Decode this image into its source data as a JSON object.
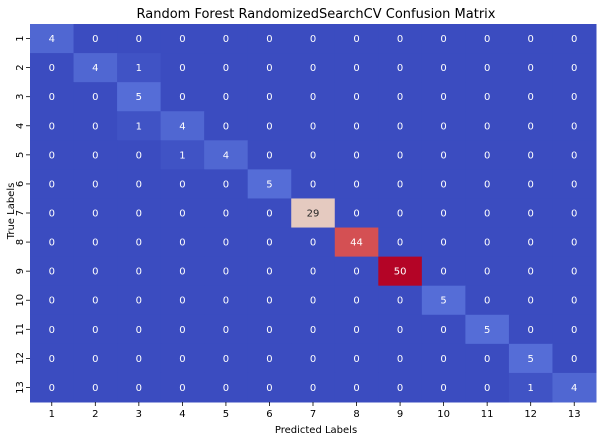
{
  "chart_data": {
    "type": "heatmap",
    "title": "Random Forest RandomizedSearchCV Confusion Matrix",
    "xlabel": "Predicted Labels",
    "ylabel": "True Labels",
    "x_categories": [
      "1",
      "2",
      "3",
      "4",
      "5",
      "6",
      "7",
      "8",
      "9",
      "10",
      "11",
      "12",
      "13"
    ],
    "y_categories": [
      "1",
      "2",
      "3",
      "4",
      "5",
      "6",
      "7",
      "8",
      "9",
      "10",
      "11",
      "12",
      "13"
    ],
    "values": [
      [
        4,
        0,
        0,
        0,
        0,
        0,
        0,
        0,
        0,
        0,
        0,
        0,
        0
      ],
      [
        0,
        4,
        1,
        0,
        0,
        0,
        0,
        0,
        0,
        0,
        0,
        0,
        0
      ],
      [
        0,
        0,
        5,
        0,
        0,
        0,
        0,
        0,
        0,
        0,
        0,
        0,
        0
      ],
      [
        0,
        0,
        1,
        4,
        0,
        0,
        0,
        0,
        0,
        0,
        0,
        0,
        0
      ],
      [
        0,
        0,
        0,
        1,
        4,
        0,
        0,
        0,
        0,
        0,
        0,
        0,
        0
      ],
      [
        0,
        0,
        0,
        0,
        0,
        5,
        0,
        0,
        0,
        0,
        0,
        0,
        0
      ],
      [
        0,
        0,
        0,
        0,
        0,
        0,
        29,
        0,
        0,
        0,
        0,
        0,
        0
      ],
      [
        0,
        0,
        0,
        0,
        0,
        0,
        0,
        44,
        0,
        0,
        0,
        0,
        0
      ],
      [
        0,
        0,
        0,
        0,
        0,
        0,
        0,
        0,
        50,
        0,
        0,
        0,
        0
      ],
      [
        0,
        0,
        0,
        0,
        0,
        0,
        0,
        0,
        0,
        5,
        0,
        0,
        0
      ],
      [
        0,
        0,
        0,
        0,
        0,
        0,
        0,
        0,
        0,
        0,
        5,
        0,
        0
      ],
      [
        0,
        0,
        0,
        0,
        0,
        0,
        0,
        0,
        0,
        0,
        0,
        5,
        0
      ],
      [
        0,
        0,
        0,
        0,
        0,
        0,
        0,
        0,
        0,
        0,
        0,
        1,
        4
      ]
    ],
    "vmin": 0,
    "vmax": 50,
    "colormap": "coolwarm",
    "colorbar": false,
    "annotations": true
  }
}
